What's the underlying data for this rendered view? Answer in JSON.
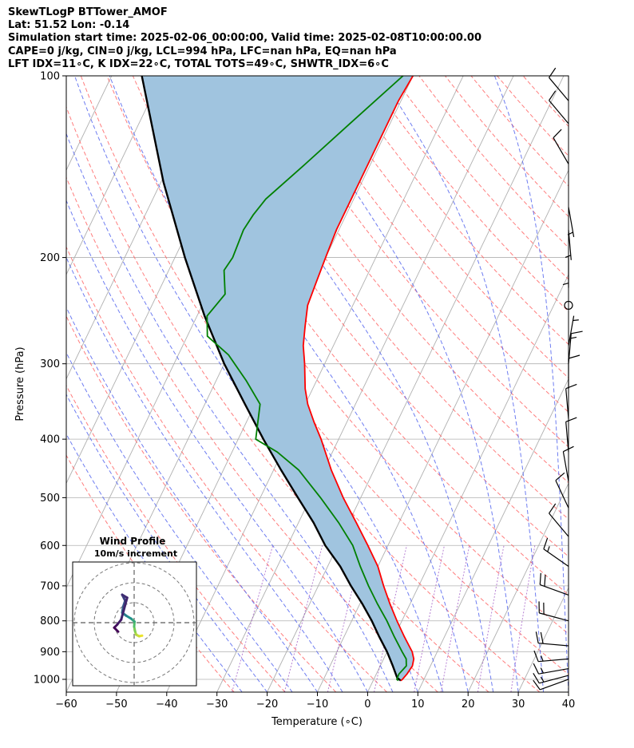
{
  "header": {
    "line1": "SkewTLogP BTTower_AMOF",
    "line2": "Lat: 51.52   Lon: -0.14",
    "line3": "Simulation start time: 2025-02-06_00:00:00, Valid time: 2025-02-08T10:00:00.00",
    "line4": "CAPE=0 j/kg, CIN=0 j/kg, LCL=994 hPa, LFC=nan hPa, EQ=nan hPa",
    "line5": "LFT IDX=11∘C, K IDX=22∘C, TOTAL TOTS=49∘C, SHWTR_IDX=6∘C"
  },
  "chart_data": {
    "type": "skewt-logp",
    "xlabel": "Temperature (∘C)",
    "ylabel": "Pressure (hPa)",
    "xlim": [
      -60,
      40
    ],
    "ylim": [
      1050,
      100
    ],
    "y_scale": "log",
    "x_ticks": [
      "−60",
      "−50",
      "−40",
      "−30",
      "−20",
      "−10",
      "0",
      "10",
      "20",
      "30",
      "40"
    ],
    "y_ticks": [
      "100",
      "200",
      "300",
      "400",
      "500",
      "600",
      "700",
      "800",
      "900",
      "1000"
    ],
    "x_tick_values": [
      -60,
      -50,
      -40,
      -30,
      -20,
      -10,
      0,
      10,
      20,
      30,
      40
    ],
    "y_tick_values": [
      100,
      200,
      300,
      400,
      500,
      600,
      700,
      800,
      900,
      1000
    ],
    "grid": true,
    "colors": {
      "temperature": "#ff0000",
      "dewpoint": "#008000",
      "parcel": "#000000",
      "fill": "#a0c4df",
      "dry_adiabats": "#ff6666",
      "moist_adiabats": "#5566ee",
      "mixing_ratio": "#9a4fc2",
      "isotherms": "#b0b0b0"
    },
    "temperature": {
      "pressure": [
        1005,
        1000,
        980,
        950,
        925,
        900,
        850,
        800,
        750,
        700,
        650,
        600,
        550,
        500,
        450,
        400,
        375,
        350,
        330,
        300,
        280,
        260,
        240,
        220,
        200,
        180,
        160,
        150,
        140,
        130,
        120,
        110,
        100
      ],
      "value": [
        5.5,
        5.7,
        6.1,
        6.4,
        6.0,
        5.0,
        2.0,
        -1.0,
        -4.0,
        -7.0,
        -10.0,
        -14.0,
        -18.5,
        -23.5,
        -28.5,
        -33.5,
        -36.5,
        -39.5,
        -41.5,
        -44.0,
        -46.0,
        -47.5,
        -49.0,
        -49.5,
        -50.0,
        -50.5,
        -50.5,
        -50.5,
        -50.5,
        -50.5,
        -50.5,
        -50.5,
        -50.0
      ]
    },
    "dewpoint": {
      "pressure": [
        1005,
        1000,
        980,
        950,
        925,
        900,
        850,
        800,
        750,
        700,
        650,
        600,
        550,
        500,
        450,
        420,
        400,
        350,
        320,
        290,
        270,
        250,
        230,
        210,
        200,
        180,
        170,
        160,
        140,
        120,
        100
      ],
      "value": [
        5.0,
        4.6,
        4.5,
        5.2,
        4.5,
        3.0,
        0.0,
        -3.0,
        -6.5,
        -10.0,
        -13.5,
        -17.0,
        -22.0,
        -28.0,
        -35.0,
        -41.0,
        -46.5,
        -49.0,
        -54.0,
        -60.0,
        -66.0,
        -68.0,
        -66.5,
        -69.0,
        -68.5,
        -69.0,
        -68.5,
        -67.5,
        -63.0,
        -58.0,
        -52.0
      ]
    },
    "parcel_path": {
      "pressure": [
        1005,
        994,
        950,
        900,
        850,
        800,
        750,
        700,
        650,
        600,
        550,
        500,
        450,
        400,
        350,
        300,
        250,
        200,
        150,
        100
      ],
      "value": [
        5.5,
        4.5,
        2.5,
        0.0,
        -3.0,
        -6.0,
        -9.5,
        -13.5,
        -17.5,
        -22.5,
        -27.0,
        -32.5,
        -38.5,
        -45.0,
        -52.0,
        -60.0,
        -68.5,
        -78.0,
        -89.5,
        -104.0
      ]
    },
    "wind_barbs": [
      {
        "pressure": 1000,
        "speed_kt": 10,
        "direction_deg": 250
      },
      {
        "pressure": 985,
        "speed_kt": 15,
        "direction_deg": 255
      },
      {
        "pressure": 960,
        "speed_kt": 15,
        "direction_deg": 260
      },
      {
        "pressure": 925,
        "speed_kt": 15,
        "direction_deg": 265
      },
      {
        "pressure": 880,
        "speed_kt": 20,
        "direction_deg": 275
      },
      {
        "pressure": 800,
        "speed_kt": 20,
        "direction_deg": 285
      },
      {
        "pressure": 725,
        "speed_kt": 20,
        "direction_deg": 290
      },
      {
        "pressure": 650,
        "speed_kt": 15,
        "direction_deg": 305
      },
      {
        "pressure": 580,
        "speed_kt": 10,
        "direction_deg": 320
      },
      {
        "pressure": 520,
        "speed_kt": 10,
        "direction_deg": 335
      },
      {
        "pressure": 470,
        "speed_kt": 10,
        "direction_deg": 350
      },
      {
        "pressure": 420,
        "speed_kt": 10,
        "direction_deg": 355
      },
      {
        "pressure": 370,
        "speed_kt": 10,
        "direction_deg": 355
      },
      {
        "pressure": 330,
        "speed_kt": 10,
        "direction_deg": 0
      },
      {
        "pressure": 300,
        "speed_kt": 15,
        "direction_deg": 5
      },
      {
        "pressure": 280,
        "speed_kt": 5,
        "direction_deg": 10
      },
      {
        "pressure": 240,
        "speed_kt": 0,
        "direction_deg": 0
      },
      {
        "pressure": 200,
        "speed_kt": 5,
        "direction_deg": 180
      },
      {
        "pressure": 180,
        "speed_kt": 5,
        "direction_deg": 175
      },
      {
        "pressure": 165,
        "speed_kt": 5,
        "direction_deg": 170
      },
      {
        "pressure": 140,
        "speed_kt": 10,
        "direction_deg": 330
      },
      {
        "pressure": 120,
        "speed_kt": 10,
        "direction_deg": 320
      },
      {
        "pressure": 110,
        "speed_kt": 10,
        "direction_deg": 320
      }
    ],
    "hodograph": {
      "title": "Wind Profile",
      "subtitle": "10m/s increment",
      "points": [
        {
          "u": 4.0,
          "v": -6.5,
          "h": 0.0
        },
        {
          "u": 2.5,
          "v": -6.8,
          "h": 0.05
        },
        {
          "u": 1.0,
          "v": -6.0,
          "h": 0.1
        },
        {
          "u": 0.5,
          "v": -4.5,
          "h": 0.15
        },
        {
          "u": 0.0,
          "v": -2.0,
          "h": 0.25
        },
        {
          "u": 0.2,
          "v": 0.5,
          "h": 0.35
        },
        {
          "u": -1.5,
          "v": 2.0,
          "h": 0.45
        },
        {
          "u": -4.0,
          "v": 3.5,
          "h": 0.55
        },
        {
          "u": -6.0,
          "v": 5.0,
          "h": 0.62
        },
        {
          "u": -5.5,
          "v": 8.0,
          "h": 0.7
        },
        {
          "u": -4.5,
          "v": 11.0,
          "h": 0.78
        },
        {
          "u": -6.0,
          "v": 14.0,
          "h": 0.84
        },
        {
          "u": -3.5,
          "v": 12.5,
          "h": 0.88
        },
        {
          "u": -6.5,
          "v": 1.5,
          "h": 0.9
        },
        {
          "u": -8.5,
          "v": -1.0,
          "h": 0.94
        },
        {
          "u": -10.0,
          "v": -2.5,
          "h": 0.97
        },
        {
          "u": -8.0,
          "v": -4.5,
          "h": 1.0
        }
      ]
    }
  }
}
